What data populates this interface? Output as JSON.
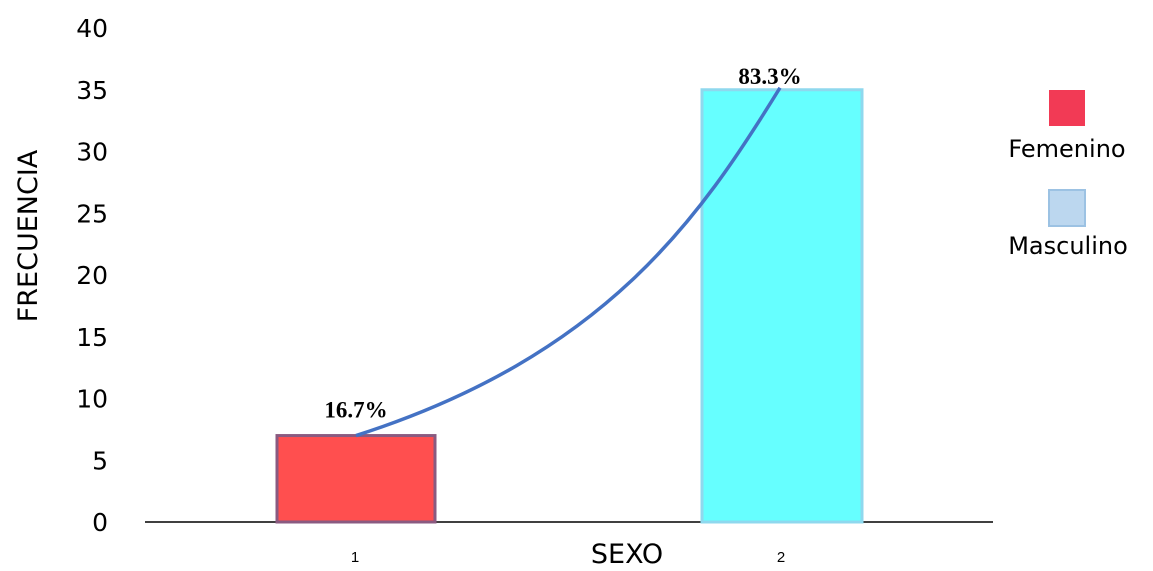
{
  "chart_data": {
    "type": "bar",
    "categories": [
      "1",
      "2"
    ],
    "values": [
      7,
      35
    ],
    "data_labels": [
      "16.7%",
      "83.3%"
    ],
    "xlabel": "SEXO",
    "ylabel": "FRECUENCIA",
    "ylim": [
      0,
      40
    ],
    "yticks": [
      0,
      5,
      10,
      15,
      20,
      25,
      30,
      35,
      40
    ],
    "grid": false,
    "legend": {
      "placement": "right",
      "entries": [
        {
          "name": "Femenino",
          "color": "#f23a55"
        },
        {
          "name": "Masculino",
          "color": "#bcd7ef"
        }
      ]
    },
    "bar_colors": [
      "#ff4f4f",
      "#66ffff"
    ],
    "trend_line_color": "#4472c4"
  }
}
